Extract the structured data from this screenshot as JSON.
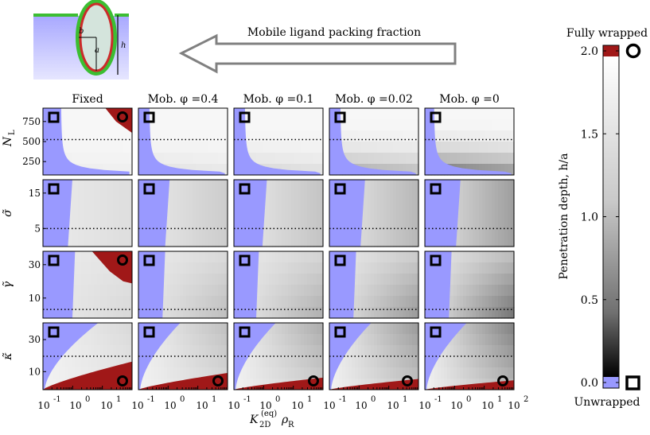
{
  "header": {
    "arrow_label": "Mobile ligand packing fraction"
  },
  "schematic": {
    "labels": {
      "b": "b",
      "a": "a",
      "h": "h"
    }
  },
  "chart_data": {
    "type": "heatmap",
    "columns": [
      "Fixed",
      "Mob. φ =0.4",
      "Mob. φ =0.1",
      "Mob. φ =0.02",
      "Mob. φ =0"
    ],
    "x_axis": {
      "label_main": "K",
      "label_sub": "2D",
      "label_sup": "(eq)",
      "label_tail": "ρ",
      "label_tail_sub": "R",
      "scale": "log",
      "range": [
        0.1,
        100
      ],
      "tick_bases": [
        "10",
        "10",
        "10",
        "10"
      ],
      "tick_exps": [
        "-1",
        "0",
        "1",
        "2"
      ]
    },
    "rows": [
      {
        "name": "NL",
        "ylabel": "N",
        "ylabel_sub": "L",
        "yticks": [
          "750",
          "500",
          "250"
        ],
        "dotted_line": 500
      },
      {
        "name": "sigma",
        "ylabel": "σ̃",
        "yticks": [
          "15",
          "5"
        ],
        "dotted_line": 5
      },
      {
        "name": "gamma",
        "ylabel": "γ̃",
        "yticks": [
          "30",
          "10"
        ],
        "dotted_line": 5
      },
      {
        "name": "kappa",
        "ylabel": "κ̃",
        "yticks": [
          "30",
          "10"
        ],
        "dotted_line": 20
      }
    ],
    "colorbar": {
      "title_top": "Fully wrapped",
      "title_bottom": "Unwrapped",
      "axis_label": "Penetration depth, h/a",
      "ticks": [
        "0.0",
        "0.5",
        "1.0",
        "1.5",
        "2.0"
      ],
      "range": [
        0,
        2
      ],
      "unwrapped_color": "#9999ff",
      "wrapped_color": "#a01818"
    },
    "colors": {
      "unwrapped": "#9999ff",
      "wrapped": "#a01818",
      "high": "#ffffff",
      "low": "#000000"
    }
  }
}
